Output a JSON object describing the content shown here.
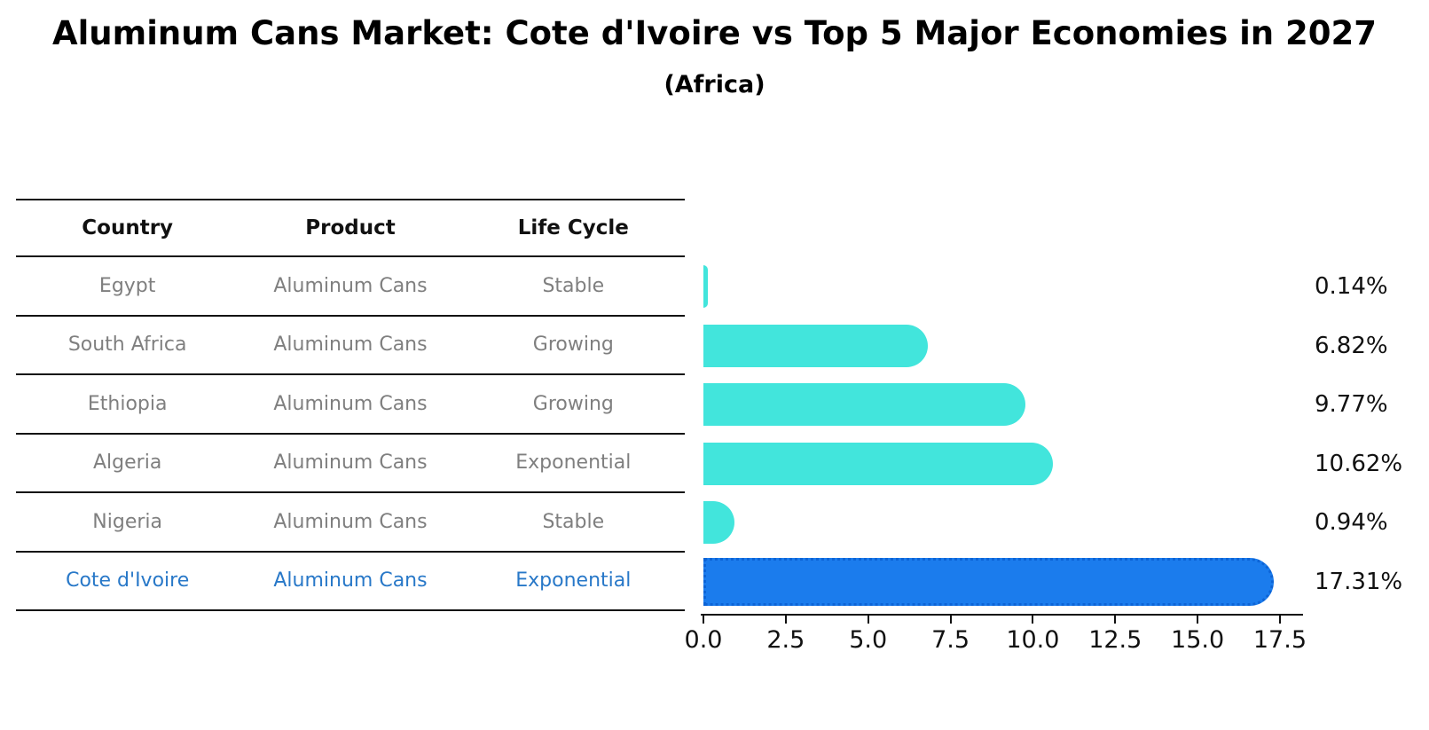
{
  "page": {
    "title": "Aluminum Cans Market: Cote d'Ivoire vs Top 5 Major Economies in 2027",
    "subtitle": "(Africa)"
  },
  "colors": {
    "background": "#ffffff",
    "bar_default": "#42e5dc",
    "bar_highlight": "#1b7ced",
    "bar_highlight_border": "#0d64d6",
    "table_text": "#7f7f7f",
    "table_header_text": "#111111",
    "highlight_text": "#2878c8",
    "line": "#111111",
    "value_text": "#111111"
  },
  "table": {
    "headers": [
      "Country",
      "Product",
      "Life Cycle"
    ],
    "rows": [
      {
        "country": "Egypt",
        "product": "Aluminum Cans",
        "life_cycle": "Stable",
        "highlight": false
      },
      {
        "country": "South Africa",
        "product": "Aluminum Cans",
        "life_cycle": "Growing",
        "highlight": false
      },
      {
        "country": "Ethiopia",
        "product": "Aluminum Cans",
        "life_cycle": "Growing",
        "highlight": false
      },
      {
        "country": "Algeria",
        "product": "Aluminum Cans",
        "life_cycle": "Exponential",
        "highlight": false
      },
      {
        "country": "Nigeria",
        "product": "Aluminum Cans",
        "life_cycle": "Stable",
        "highlight": false
      },
      {
        "country": "Cote d'Ivoire",
        "product": "Aluminum Cans",
        "life_cycle": "Exponential",
        "highlight": true
      }
    ]
  },
  "chart_data": {
    "type": "bar",
    "orientation": "horizontal",
    "title": "Aluminum Cans Market: Cote d'Ivoire vs Top 5 Major Economies in 2027",
    "subtitle": "(Africa)",
    "categories": [
      "Egypt",
      "South Africa",
      "Ethiopia",
      "Algeria",
      "Nigeria",
      "Cote d'Ivoire"
    ],
    "values": [
      0.14,
      6.82,
      9.77,
      10.62,
      0.94,
      17.31
    ],
    "value_labels": [
      "0.14%",
      "6.82%",
      "9.77%",
      "10.62%",
      "0.94%",
      "17.31%"
    ],
    "highlight_index": 5,
    "highlight_category": "Cote d'Ivoire",
    "xlabel": "",
    "ylabel": "",
    "xlim": [
      0,
      18.3
    ],
    "x_ticks": [
      0.0,
      2.5,
      5.0,
      7.5,
      10.0,
      12.5,
      15.0,
      17.5
    ],
    "x_tick_labels": [
      "0.0",
      "2.5",
      "5.0",
      "7.5",
      "10.0",
      "12.5",
      "15.0",
      "17.5"
    ],
    "grid": false,
    "legend": false
  }
}
